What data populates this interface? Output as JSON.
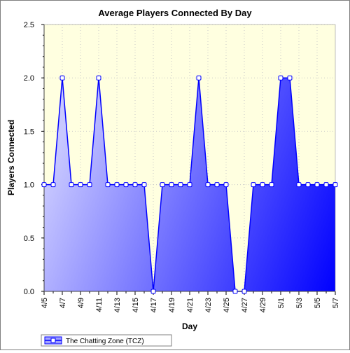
{
  "chart_data": {
    "type": "area",
    "title": "Average Players Connected By Day",
    "xlabel": "Day",
    "ylabel": "Players Connected",
    "ylim": [
      0,
      2.5
    ],
    "yticks": [
      "0.0",
      "0.5",
      "1.0",
      "1.5",
      "2.0",
      "2.5"
    ],
    "xtick_labels": [
      "4/5",
      "4/7",
      "4/9",
      "4/11",
      "4/13",
      "4/15",
      "4/17",
      "4/19",
      "4/21",
      "4/23",
      "4/25",
      "4/27",
      "4/29",
      "5/1",
      "5/3",
      "5/5",
      "5/7"
    ],
    "x": [
      "4/5",
      "4/6",
      "4/7",
      "4/8",
      "4/9",
      "4/10",
      "4/11",
      "4/12",
      "4/13",
      "4/14",
      "4/15",
      "4/16",
      "4/17",
      "4/18",
      "4/19",
      "4/20",
      "4/21",
      "4/22",
      "4/23",
      "4/24",
      "4/25",
      "4/26",
      "4/27",
      "4/28",
      "4/29",
      "4/30",
      "5/1",
      "5/2",
      "5/3",
      "5/4",
      "5/5",
      "5/6",
      "5/7"
    ],
    "series": [
      {
        "name": "The Chatting Zone (TCZ)",
        "values": [
          1,
          1,
          2,
          1,
          1,
          1,
          2,
          1,
          1,
          1,
          1,
          1,
          0,
          1,
          1,
          1,
          1,
          2,
          1,
          1,
          1,
          0,
          0,
          1,
          1,
          1,
          2,
          2,
          1,
          1,
          1,
          1,
          1
        ]
      }
    ],
    "grid": true,
    "legend_position": "bottom-left",
    "colors": {
      "plot_background": "#ffffe0",
      "line": "#0000ff",
      "fill_light": "#c8c8ff",
      "fill_dark": "#0000ff",
      "marker_fill": "#ffffff",
      "grid": "#c8c8c8"
    }
  }
}
